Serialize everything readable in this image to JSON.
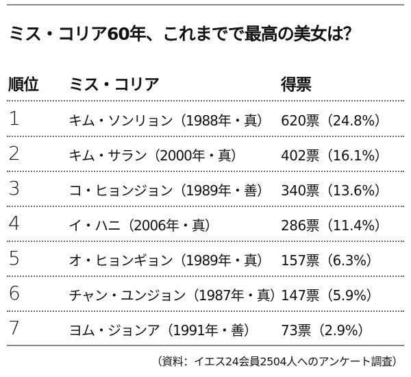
{
  "title": "ミス・コリア60年、これまでで最高の美女は？",
  "headers": {
    "rank": "順位",
    "name": "ミス・コリア",
    "votes": "得票"
  },
  "rows": [
    {
      "rank": "1",
      "name": "キム・ソンリョン（1988年・真）",
      "votes": "620票（24.8%）"
    },
    {
      "rank": "2",
      "name": "キム・サラン（2000年・真）",
      "votes": "402票（16.1%）"
    },
    {
      "rank": "3",
      "name": "コ・ヒョンジョン（1989年・善）",
      "votes": "340票（13.6%）"
    },
    {
      "rank": "4",
      "name": "イ・ハニ（2006年・真）",
      "votes": "286票（11.4%）"
    },
    {
      "rank": "5",
      "name": "オ・ヒョンギョン（1989年・真）",
      "votes": "157票（6.3%）"
    },
    {
      "rank": "6",
      "name": "チャン・ユンジョン（1987年・真）",
      "votes": "147票（5.9%）"
    },
    {
      "rank": "7",
      "name": "ヨム・ジョンア（1991年・善）",
      "votes": "73票（2.9%）"
    }
  ],
  "source": "（資料：イエス24会員2504人へのアンケート調査）"
}
